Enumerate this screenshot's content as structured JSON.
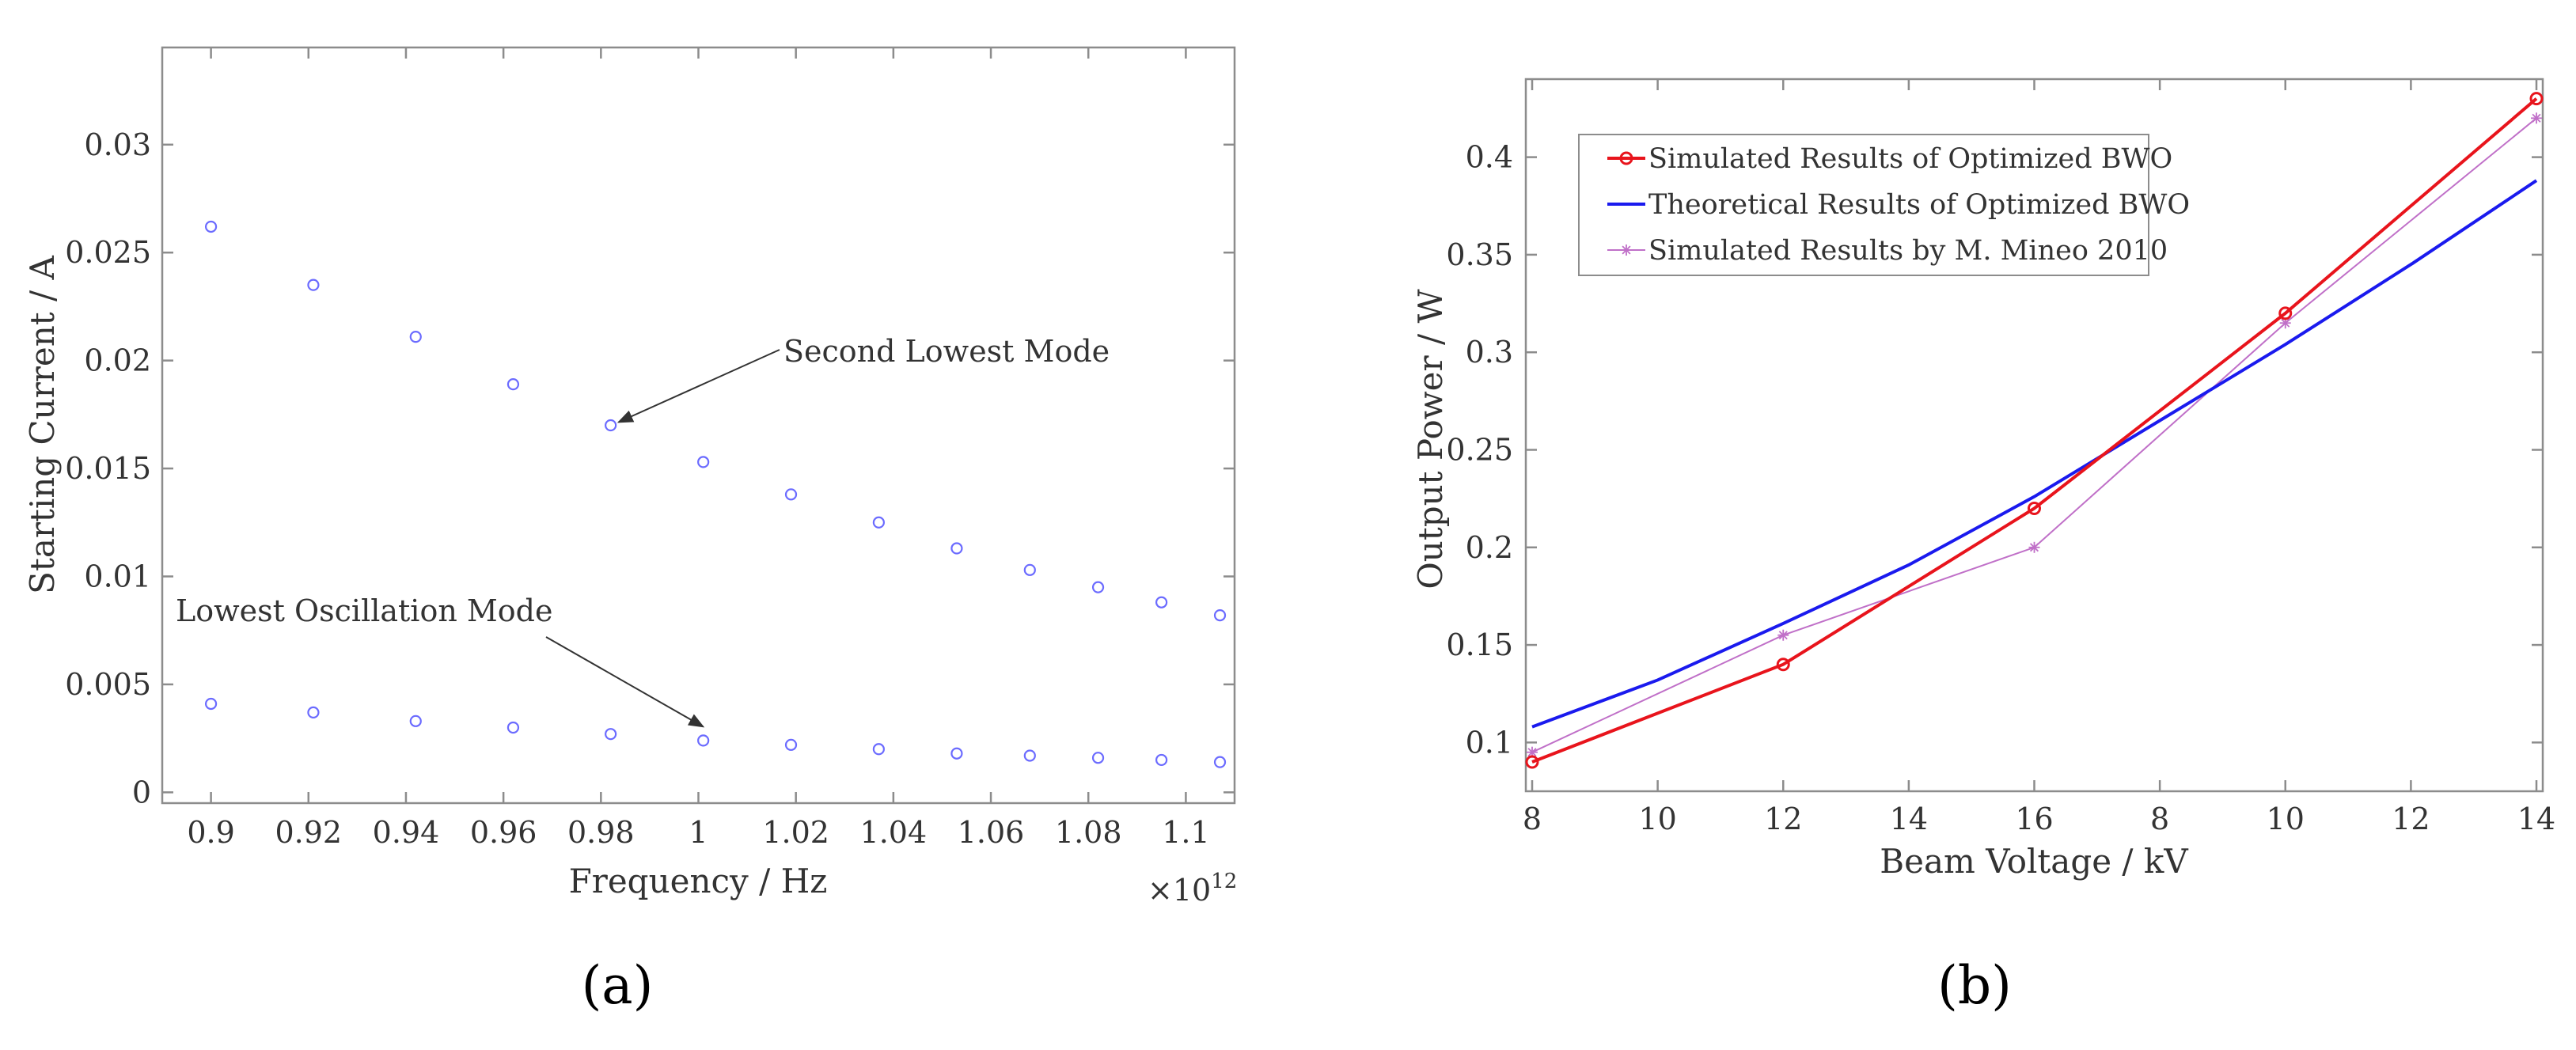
{
  "chart_data": [
    {
      "panel": "a",
      "type": "scatter",
      "xlabel": "Frequency / Hz",
      "ylabel": "Starting Current / A",
      "x_multiplier_label": "×10",
      "x_multiplier_exponent": "12",
      "xlim": [
        0.89,
        1.11
      ],
      "ylim": [
        -0.0005,
        0.0345
      ],
      "x_ticks": [
        0.9,
        0.92,
        0.94,
        0.96,
        0.98,
        1.0,
        1.02,
        1.04,
        1.06,
        1.08,
        1.1
      ],
      "x_tick_labels": [
        "0.9",
        "0.92",
        "0.94",
        "0.96",
        "0.98",
        "1",
        "1.02",
        "1.04",
        "1.06",
        "1.08",
        "1.1"
      ],
      "y_ticks": [
        0,
        0.005,
        0.01,
        0.015,
        0.02,
        0.025,
        0.03
      ],
      "y_tick_labels": [
        "0",
        "0.005",
        "0.01",
        "0.015",
        "0.02",
        "0.025",
        "0.03"
      ],
      "marker_color": "#6b6bff",
      "series": [
        {
          "name": "Second Lowest Mode",
          "x": [
            0.9,
            0.921,
            0.942,
            0.962,
            0.982,
            1.001,
            1.019,
            1.037,
            1.053,
            1.068,
            1.082,
            1.095,
            1.107
          ],
          "y": [
            0.0262,
            0.0235,
            0.0211,
            0.0189,
            0.017,
            0.0153,
            0.0138,
            0.0125,
            0.0113,
            0.0103,
            0.0095,
            0.0088,
            0.0082
          ]
        },
        {
          "name": "Lowest Oscillation Mode",
          "x": [
            0.9,
            0.921,
            0.942,
            0.962,
            0.982,
            1.001,
            1.019,
            1.037,
            1.053,
            1.068,
            1.082,
            1.095,
            1.107
          ],
          "y": [
            0.0041,
            0.0037,
            0.0033,
            0.003,
            0.0027,
            0.0024,
            0.0022,
            0.002,
            0.0018,
            0.0017,
            0.0016,
            0.0015,
            0.0014
          ]
        }
      ],
      "annotations": [
        {
          "text": "Second Lowest Mode",
          "x": 1.05,
          "y": 0.0205,
          "arrow_to_x": 0.982,
          "arrow_to_y": 0.017
        },
        {
          "text": "Lowest Oscillation Mode",
          "x": 0.935,
          "y": 0.0085,
          "arrow_to_x": 1.0,
          "arrow_to_y": 0.0026
        }
      ]
    },
    {
      "panel": "b",
      "type": "line",
      "xlabel": "Beam Voltage / kV",
      "ylabel": "Output Power / W",
      "xlim": [
        0,
        8
      ],
      "ylim": [
        0.075,
        0.44
      ],
      "x_ticks": [
        0,
        1,
        2,
        3,
        4,
        5,
        6,
        7,
        8
      ],
      "x_tick_labels": [
        "8",
        "10",
        "12",
        "14",
        "16",
        "8",
        "10",
        "12",
        "14"
      ],
      "y_ticks": [
        0.1,
        0.15,
        0.2,
        0.25,
        0.3,
        0.35,
        0.4
      ],
      "y_tick_labels": [
        "0.1",
        "0.15",
        "0.2",
        "0.25",
        "0.3",
        "0.35",
        "0.4"
      ],
      "legend_position": "top-left",
      "series": [
        {
          "name": "Simulated Results of Optimized BWO",
          "color": "#e8141c",
          "marker": "circle",
          "x": [
            0,
            2,
            4,
            6,
            8
          ],
          "y": [
            0.09,
            0.14,
            0.22,
            0.32,
            0.43
          ]
        },
        {
          "name": "Theoretical Results of Optimized BWO",
          "color": "#1a1aee",
          "marker": "none",
          "x": [
            0,
            1,
            2,
            3,
            4,
            5,
            6,
            7,
            8
          ],
          "y": [
            0.108,
            0.132,
            0.161,
            0.191,
            0.226,
            0.265,
            0.304,
            0.345,
            0.388
          ]
        },
        {
          "name": "Simulated Results by M. Mineo 2010",
          "color": "#c070c8",
          "marker": "star",
          "x": [
            0,
            2,
            4,
            6,
            8
          ],
          "y": [
            0.095,
            0.155,
            0.2,
            0.315,
            0.42
          ]
        }
      ]
    }
  ],
  "panel_labels": [
    "(a)",
    "(b)"
  ]
}
